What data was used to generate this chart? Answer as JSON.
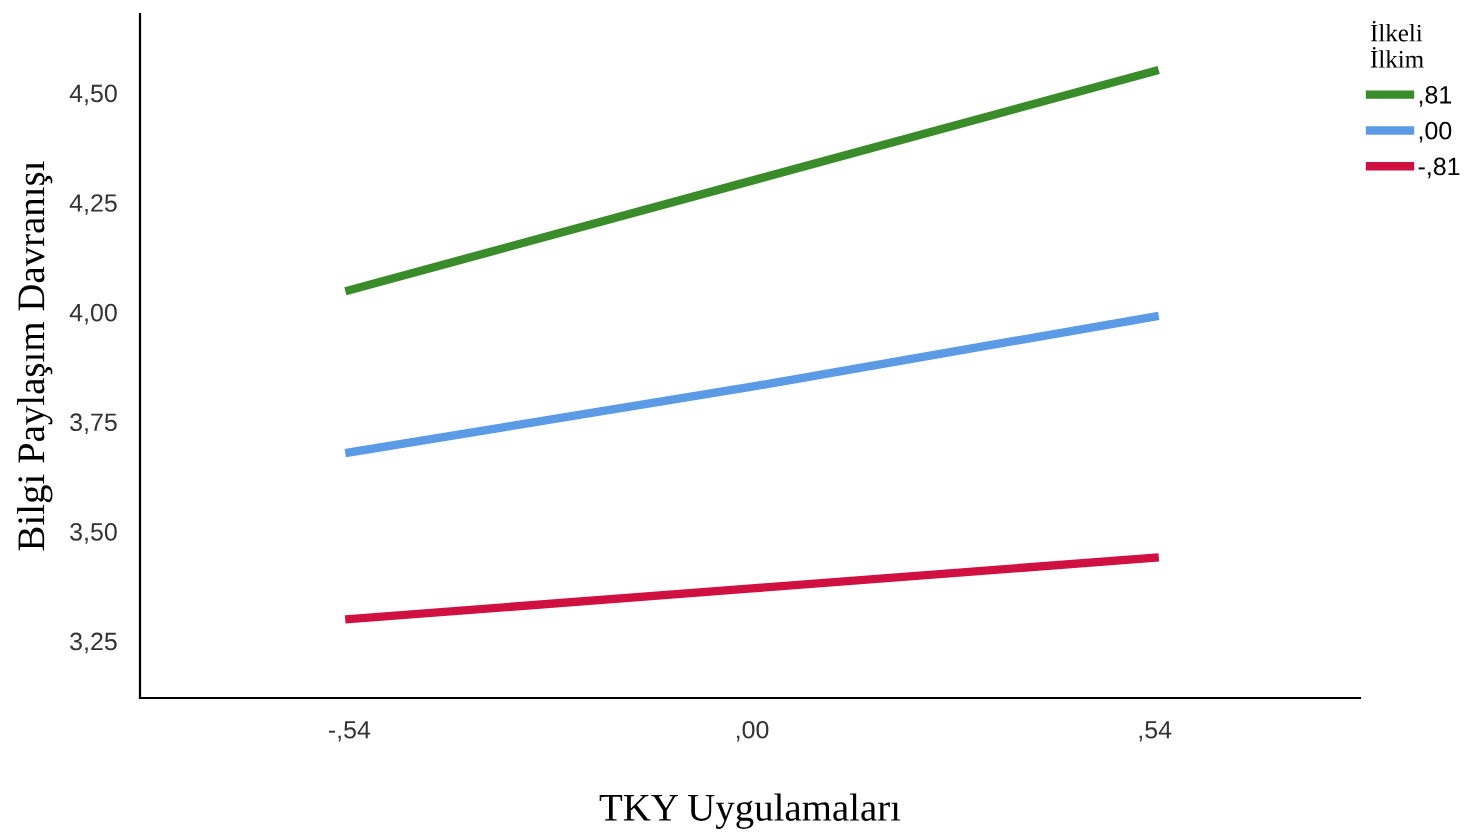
{
  "chart_data": {
    "type": "line",
    "xlabel": "TKY Uygulamaları",
    "ylabel": "Bilgi Paylaşım Davranışı",
    "legend_title": "İlkeli\nİlkim",
    "categories": [
      "-,54",
      ",00",
      ",54"
    ],
    "series": [
      {
        "name": ",81",
        "color": "#3a8c2a",
        "values": [
          4.05,
          4.3,
          4.55
        ]
      },
      {
        "name": ",00",
        "color": "#5b9be6",
        "values": [
          3.68,
          3.83,
          3.99
        ]
      },
      {
        "name": "-,81",
        "color": "#d01040",
        "values": [
          3.3,
          3.37,
          3.44
        ]
      }
    ],
    "ylim": [
      3.12,
      4.68
    ],
    "yticks": [
      {
        "value": 3.25,
        "label": "3,25"
      },
      {
        "value": 3.5,
        "label": "3,50"
      },
      {
        "value": 3.75,
        "label": "3,75"
      },
      {
        "value": 4.0,
        "label": "4,00"
      },
      {
        "value": 4.25,
        "label": "4,25"
      },
      {
        "value": 4.5,
        "label": "4,50"
      }
    ],
    "legend": "top right",
    "grid": false,
    "marker": "none",
    "line_style": "solid"
  }
}
